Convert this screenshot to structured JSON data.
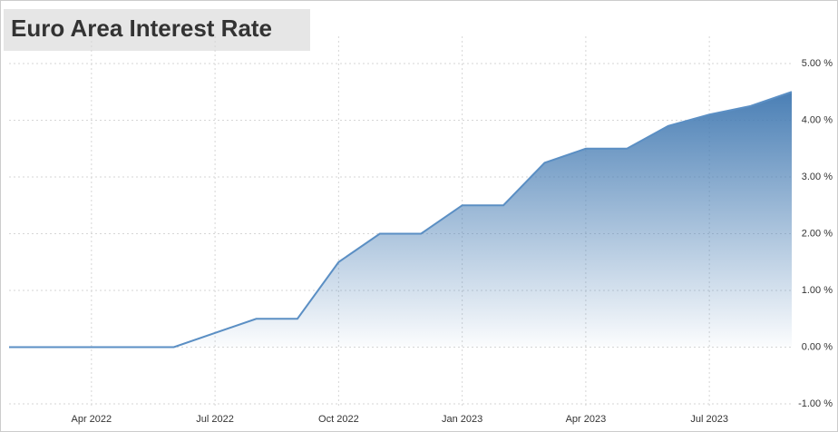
{
  "chart_data": {
    "type": "area",
    "title": "Euro Area Interest Rate",
    "x": [
      "2022-02",
      "2022-06",
      "2022-08",
      "2022-09",
      "2022-10",
      "2022-11",
      "2022-12",
      "2023-01",
      "2023-02",
      "2023-03",
      "2023-04",
      "2023-05",
      "2023-06",
      "2023-07",
      "2023-08",
      "2023-09"
    ],
    "series": [
      {
        "name": "Interest Rate",
        "color": "#5b8fc4",
        "values": [
          0,
          0,
          0.5,
          0.5,
          1.5,
          2.0,
          2.0,
          2.5,
          2.5,
          3.25,
          3.5,
          3.5,
          3.9,
          4.1,
          4.25,
          4.5
        ]
      }
    ],
    "xlim": [
      "2022-02",
      "2023-09"
    ],
    "xticks": [
      {
        "value": "2022-04",
        "label": "Apr 2022"
      },
      {
        "value": "2022-07",
        "label": "Jul 2022"
      },
      {
        "value": "2022-10",
        "label": "Oct 2022"
      },
      {
        "value": "2023-01",
        "label": "Jan 2023"
      },
      {
        "value": "2023-04",
        "label": "Apr 2023"
      },
      {
        "value": "2023-07",
        "label": "Jul 2023"
      }
    ],
    "ylim": [
      -1,
      5
    ],
    "yticks": [
      {
        "value": -1,
        "label": "-1.00 %"
      },
      {
        "value": 0,
        "label": "0.00 %"
      },
      {
        "value": 1,
        "label": "1.00 %"
      },
      {
        "value": 2,
        "label": "2.00 %"
      },
      {
        "value": 3,
        "label": "3.00 %"
      },
      {
        "value": 4,
        "label": "4.00 %"
      },
      {
        "value": 5,
        "label": "5.00 %"
      }
    ],
    "grid": true
  }
}
